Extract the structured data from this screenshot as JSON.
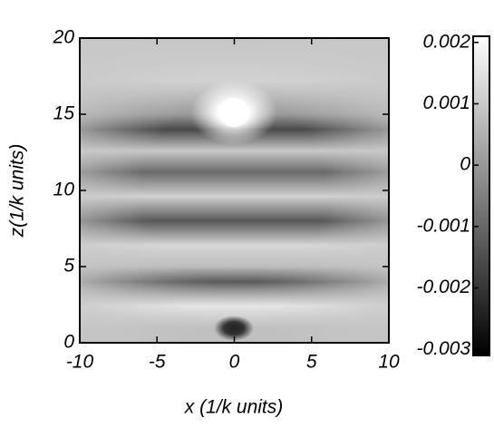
{
  "chart_data": {
    "type": "density",
    "xlabel": "x (1/k units)",
    "ylabel": "z(1/k units)",
    "xlim": [
      -10,
      10
    ],
    "ylim": [
      0,
      20
    ],
    "xticks": [
      -10,
      -5,
      0,
      5,
      10
    ],
    "yticks": [
      0,
      5,
      10,
      15,
      20
    ],
    "colorbar": {
      "lim": [
        -0.0031,
        0.0021
      ],
      "ticks": [
        0.002,
        0.001,
        0,
        -0.001,
        -0.002,
        -0.003
      ]
    }
  }
}
